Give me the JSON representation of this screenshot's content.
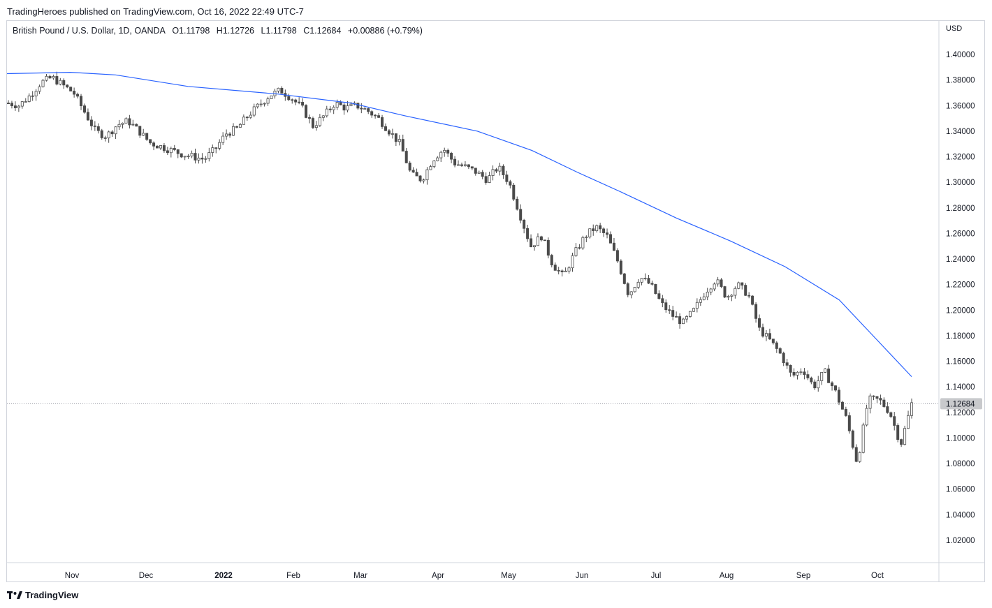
{
  "header": {
    "publisher_line": "TradingHeroes published on TradingView.com, Oct 16, 2022 22:49 UTC-7"
  },
  "legend": {
    "symbol": "British Pound / U.S. Dollar, 1D, OANDA",
    "open": "O1.11798",
    "high": "H1.12726",
    "low": "L1.11798",
    "close": "C1.12684",
    "change": "+0.00886 (+0.79%)"
  },
  "footer": {
    "brand": "TradingView"
  },
  "colors": {
    "candle": "#4a4a4a",
    "ma": "#2962ff",
    "grid_border": "#d1d4dc",
    "price_label_bg": "#c8c9cc"
  },
  "chart_data": {
    "type": "candlestick",
    "title": "British Pound / U.S. Dollar, 1D, OANDA",
    "currency": "USD",
    "y_ticks": [
      "1.40000",
      "1.38000",
      "1.36000",
      "1.34000",
      "1.32000",
      "1.30000",
      "1.28000",
      "1.26000",
      "1.24000",
      "1.22000",
      "1.20000",
      "1.18000",
      "1.16000",
      "1.14000",
      "1.12000",
      "1.10000",
      "1.08000",
      "1.06000",
      "1.04000",
      "1.02000"
    ],
    "x_ticks": [
      "Nov",
      "Dec",
      "2022",
      "Feb",
      "Mar",
      "Apr",
      "May",
      "Jun",
      "Jul",
      "Aug",
      "Sep",
      "Oct"
    ],
    "ylim": [
      1.0,
      1.415
    ],
    "last_price": "1.12684",
    "close_path": [
      1.362,
      1.36,
      1.368,
      1.378,
      1.382,
      1.376,
      1.37,
      1.355,
      1.34,
      1.336,
      1.345,
      1.348,
      1.34,
      1.331,
      1.328,
      1.325,
      1.322,
      1.32,
      1.318,
      1.326,
      1.338,
      1.342,
      1.352,
      1.36,
      1.368,
      1.372,
      1.366,
      1.358,
      1.344,
      1.352,
      1.362,
      1.358,
      1.36,
      1.356,
      1.35,
      1.34,
      1.33,
      1.306,
      1.302,
      1.318,
      1.326,
      1.315,
      1.312,
      1.308,
      1.302,
      1.312,
      1.3,
      1.275,
      1.25,
      1.258,
      1.236,
      1.226,
      1.244,
      1.258,
      1.265,
      1.258,
      1.238,
      1.212,
      1.226,
      1.22,
      1.205,
      1.196,
      1.19,
      1.2,
      1.214,
      1.224,
      1.21,
      1.22,
      1.212,
      1.185,
      1.176,
      1.165,
      1.148,
      1.154,
      1.14,
      1.152,
      1.136,
      1.115,
      1.08,
      1.13,
      1.13,
      1.12,
      1.095,
      1.12684
    ],
    "ma_points": [
      [
        0,
        1.385
      ],
      [
        0.07,
        1.386
      ],
      [
        0.12,
        1.384
      ],
      [
        0.2,
        1.375
      ],
      [
        0.3,
        1.369
      ],
      [
        0.38,
        1.362
      ],
      [
        0.44,
        1.352
      ],
      [
        0.52,
        1.34
      ],
      [
        0.58,
        1.325
      ],
      [
        0.63,
        1.308
      ],
      [
        0.68,
        1.292
      ],
      [
        0.74,
        1.272
      ],
      [
        0.8,
        1.254
      ],
      [
        0.86,
        1.234
      ],
      [
        0.92,
        1.208
      ],
      [
        0.96,
        1.178
      ],
      [
        1.0,
        1.148
      ]
    ]
  }
}
